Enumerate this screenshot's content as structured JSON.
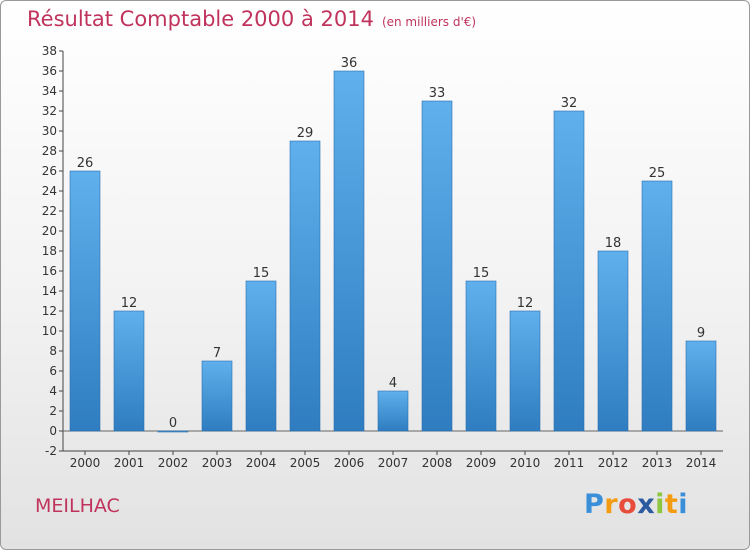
{
  "header": {
    "title": "Résultat Comptable 2000 à 2014",
    "subtitle": "(en milliers d'€)"
  },
  "footer": {
    "commune": "MEILHAC",
    "brand": [
      "P",
      "r",
      "o",
      "x",
      "i",
      "t",
      "i"
    ]
  },
  "colors": {
    "title": "#c0335c",
    "bar_top": "#5fb0ec",
    "bar_bottom": "#2f7dc0",
    "brand": [
      "#3a8fd8",
      "#f39c12",
      "#e74c3c",
      "#2c5aa0",
      "#8dc63f",
      "#f39c12",
      "#3a8fd8"
    ]
  },
  "chart_data": {
    "type": "bar",
    "categories": [
      "2000",
      "2001",
      "2002",
      "2003",
      "2004",
      "2005",
      "2006",
      "2007",
      "2008",
      "2009",
      "2010",
      "2011",
      "2012",
      "2013",
      "2014"
    ],
    "values": [
      26,
      12,
      0,
      7,
      15,
      29,
      36,
      4,
      33,
      15,
      12,
      32,
      18,
      25,
      9
    ],
    "data_labels": [
      "26",
      "12",
      "0",
      "7",
      "15",
      "29",
      "36",
      "4",
      "33",
      "15",
      "12",
      "32",
      "18",
      "25",
      "9"
    ],
    "ylim": [
      -2,
      38
    ],
    "yticks": [
      -2,
      0,
      2,
      4,
      6,
      8,
      10,
      12,
      14,
      16,
      18,
      20,
      22,
      24,
      26,
      28,
      30,
      32,
      34,
      36,
      38
    ],
    "grid": false,
    "legend": "none"
  }
}
